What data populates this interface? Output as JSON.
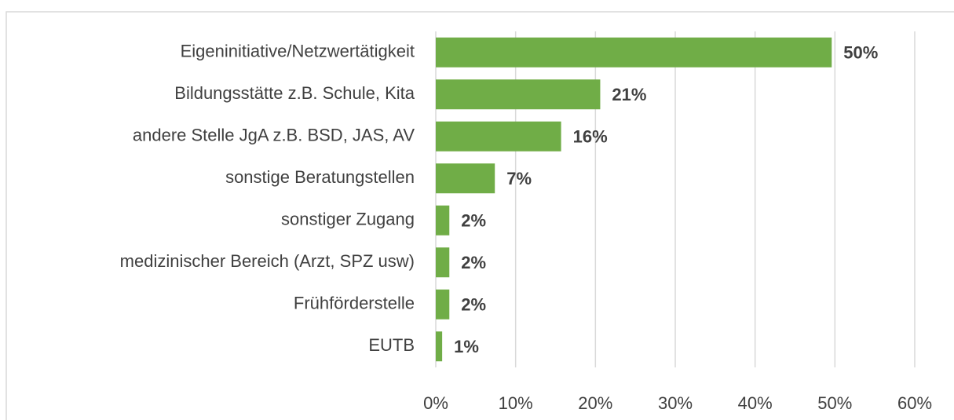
{
  "chart_data": {
    "type": "bar",
    "orientation": "horizontal",
    "categories": [
      "Eigeninitiative/Netzwertätigkeit",
      "Bildungsstätte z.B. Schule, Kita",
      "andere Stelle JgA z.B. BSD, JAS, AV",
      "sonstige Beratungstellen",
      "sonstiger Zugang",
      "medizinischer Bereich (Arzt, SPZ usw)",
      "Frühförderstelle",
      "EUTB"
    ],
    "values": [
      49.6,
      20.6,
      15.7,
      7.4,
      1.7,
      1.7,
      1.7,
      0.8
    ],
    "value_labels": [
      "50%",
      "21%",
      "16%",
      "7%",
      "2%",
      "2%",
      "2%",
      "1%"
    ],
    "color": "#70ad47",
    "xlim": [
      0,
      60
    ],
    "xticks": [
      {
        "value": 0,
        "label": "0%"
      },
      {
        "value": 10,
        "label": "10%"
      },
      {
        "value": 20,
        "label": "20%"
      },
      {
        "value": 30,
        "label": "30%"
      },
      {
        "value": 40,
        "label": "40%"
      },
      {
        "value": 50,
        "label": "50%"
      },
      {
        "value": 60,
        "label": "60%"
      }
    ],
    "grid": true
  }
}
